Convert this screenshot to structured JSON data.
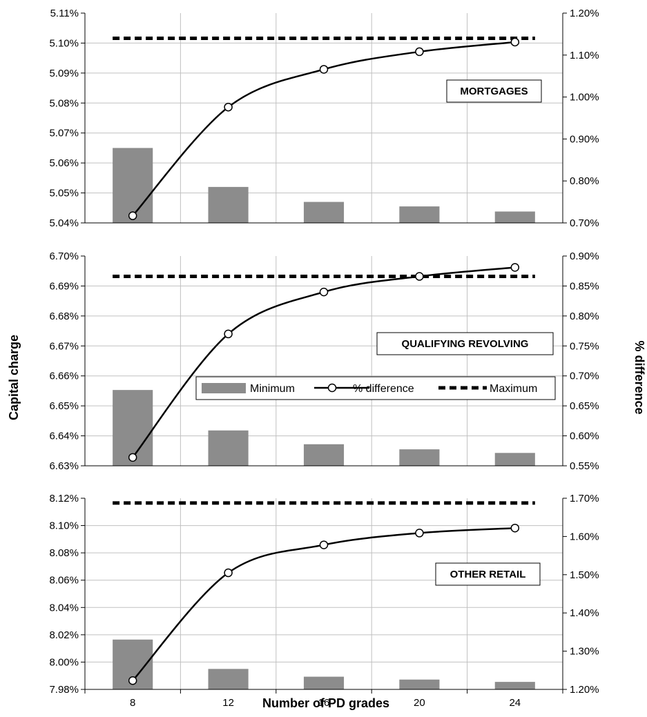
{
  "colors": {
    "bar": "#8c8c8c",
    "line": "#000000",
    "grid": "#c0c0c0",
    "max": "#000000"
  },
  "chart_data": {
    "type": "bar",
    "x": [
      8,
      12,
      16,
      20,
      24
    ],
    "xlabel": "Number of PD grades",
    "ylabel": "Capital charge",
    "y2label": "% difference",
    "legend": {
      "placement": "middle panel, center-right",
      "entries": [
        "Minimum",
        "% difference",
        "Maximum"
      ]
    },
    "grid": true,
    "panels": [
      {
        "box_label": "MORTGAGES",
        "ylim": [
          5.04,
          5.11
        ],
        "yticks": [
          "5.04%",
          "5.05%",
          "5.06%",
          "5.07%",
          "5.08%",
          "5.09%",
          "5.10%",
          "5.11%"
        ],
        "y2lim": [
          0.7,
          1.2
        ],
        "y2ticks": [
          "0.70%",
          "0.80%",
          "0.90%",
          "1.00%",
          "1.10%",
          "1.20%"
        ],
        "minimum": [
          5.065,
          5.052,
          5.047,
          5.0455,
          5.0438
        ],
        "maximum": 5.1016,
        "pct_difference": [
          0.717,
          0.976,
          1.066,
          1.108,
          1.131
        ]
      },
      {
        "box_label": "QUALIFYING REVOLVING",
        "ylim": [
          6.63,
          6.7
        ],
        "yticks": [
          "6.63%",
          "6.64%",
          "6.65%",
          "6.66%",
          "6.67%",
          "6.68%",
          "6.69%",
          "6.70%"
        ],
        "y2lim": [
          0.55,
          0.9
        ],
        "y2ticks": [
          "0.55%",
          "0.60%",
          "0.65%",
          "0.70%",
          "0.75%",
          "0.80%",
          "0.85%",
          "0.90%"
        ],
        "minimum": [
          6.6553,
          6.6418,
          6.6372,
          6.6355,
          6.6343
        ],
        "maximum": 6.6932,
        "pct_difference": [
          0.564,
          0.77,
          0.84,
          0.866,
          0.881
        ]
      },
      {
        "box_label": "OTHER RETAIL",
        "ylim": [
          7.98,
          8.12
        ],
        "yticks": [
          "7.98%",
          "8.00%",
          "8.02%",
          "8.04%",
          "8.06%",
          "8.08%",
          "8.10%",
          "8.12%"
        ],
        "y2lim": [
          1.2,
          1.7
        ],
        "y2ticks": [
          "1.20%",
          "1.30%",
          "1.40%",
          "1.50%",
          "1.60%",
          "1.70%"
        ],
        "minimum": [
          8.0165,
          7.995,
          7.9893,
          7.9872,
          7.9855
        ],
        "maximum": 8.1165,
        "pct_difference": [
          1.223,
          1.505,
          1.578,
          1.609,
          1.622
        ]
      }
    ]
  }
}
